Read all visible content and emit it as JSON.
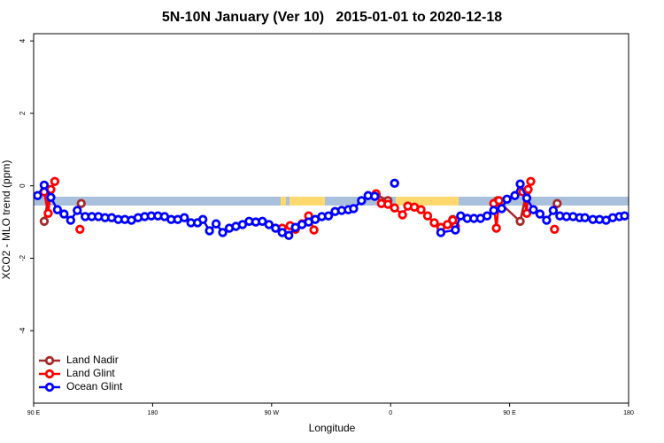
{
  "chart_data": {
    "type": "line",
    "title": "5N-10N January (Ver 10)   2015-01-01 to 2020-12-18",
    "x_label": "Longitude",
    "y_label": "XCO2 - MLO trend (ppm)",
    "xlim": [
      90,
      540
    ],
    "xticks": [
      {
        "value": 90,
        "label": "90 E"
      },
      {
        "value": 180,
        "label": "180"
      },
      {
        "value": 270,
        "label": "90 W"
      },
      {
        "value": 360,
        "label": "0"
      },
      {
        "value": 450,
        "label": "90 E"
      },
      {
        "value": 540,
        "label": "180"
      }
    ],
    "ylim": [
      -6,
      4.2
    ],
    "yticks": [
      -4,
      -2,
      0,
      2,
      4
    ],
    "legend": "bottom-left",
    "series": [
      {
        "name": "Land Nadir",
        "color": "#a52a2a",
        "x": [
          98,
          102,
          null,
          126,
          null,
          349,
          358,
          null,
          407,
          null,
          441,
          458,
          463,
          null,
          486
        ],
        "values": [
          -0.98,
          -0.15,
          null,
          -0.49,
          null,
          -0.24,
          -0.41,
          null,
          -0.93,
          null,
          -0.41,
          -0.98,
          -0.15,
          null,
          -0.49
        ]
      },
      {
        "name": "Land Glint",
        "color": "#ff0000",
        "x": [
          98,
          101,
          103,
          106,
          null,
          125,
          null,
          278,
          284,
          288,
          293,
          298,
          302,
          null,
          349,
          353,
          358,
          363,
          369,
          373,
          378,
          383,
          388,
          393,
          398,
          403,
          407,
          409,
          null,
          438,
          440,
          442,
          null,
          460,
          463,
          464,
          466,
          null,
          484
        ],
        "values": [
          -0.17,
          -0.76,
          -0.1,
          0.12,
          null,
          -1.2,
          null,
          -1.17,
          -1.1,
          -1.2,
          -1.05,
          -0.83,
          -1.22,
          null,
          -0.22,
          -0.49,
          -0.51,
          -0.61,
          -0.8,
          -0.56,
          -0.59,
          -0.66,
          -0.83,
          -1.02,
          -1.15,
          -1.07,
          -0.95,
          -1.12,
          null,
          -0.49,
          -1.17,
          -0.41,
          null,
          -0.17,
          -0.76,
          -0.1,
          0.12,
          null,
          -1.2
        ]
      },
      {
        "name": "Ocean Glint",
        "color": "#0000ff",
        "x": [
          93,
          98,
          103,
          108,
          113,
          118,
          123,
          129,
          134,
          139,
          144,
          149,
          154,
          159,
          164,
          169,
          174,
          179,
          184,
          189,
          194,
          199,
          204,
          209,
          214,
          218,
          223,
          228,
          233,
          238,
          243,
          248,
          253,
          258,
          263,
          268,
          273,
          278,
          283,
          288,
          293,
          298,
          303,
          308,
          313,
          318,
          323,
          328,
          332,
          338,
          343,
          348,
          null,
          363,
          null,
          398,
          409,
          413,
          418,
          423,
          428,
          433,
          438,
          444,
          448,
          454,
          458,
          463,
          468,
          473,
          478,
          483,
          488,
          493,
          498,
          503,
          507,
          513,
          518,
          523,
          528,
          533,
          537
        ],
        "values": [
          -0.27,
          0.02,
          -0.32,
          -0.66,
          -0.78,
          -0.95,
          -0.68,
          -0.85,
          -0.85,
          -0.85,
          -0.88,
          -0.88,
          -0.93,
          -0.93,
          -0.95,
          -0.88,
          -0.85,
          -0.83,
          -0.83,
          -0.85,
          -0.93,
          -0.93,
          -0.88,
          -1.02,
          -1.02,
          -0.93,
          -1.24,
          -1.05,
          -1.29,
          -1.17,
          -1.12,
          -1.07,
          -0.98,
          -1.0,
          -0.98,
          -1.07,
          -1.17,
          -1.29,
          -1.37,
          -1.15,
          -1.07,
          -1.0,
          -0.93,
          -0.85,
          -0.83,
          -0.71,
          -0.68,
          -0.66,
          -0.63,
          -0.41,
          -0.27,
          -0.29,
          null,
          0.07,
          null,
          -1.29,
          -1.22,
          -0.83,
          -0.9,
          -0.9,
          -0.9,
          -0.83,
          -0.68,
          -0.63,
          -0.37,
          -0.27,
          0.05,
          -0.34,
          -0.66,
          -0.78,
          -0.95,
          -0.68,
          -0.83,
          -0.85,
          -0.85,
          -0.88,
          -0.88,
          -0.93,
          -0.93,
          -0.95,
          -0.88,
          -0.85,
          -0.83
        ]
      }
    ]
  }
}
